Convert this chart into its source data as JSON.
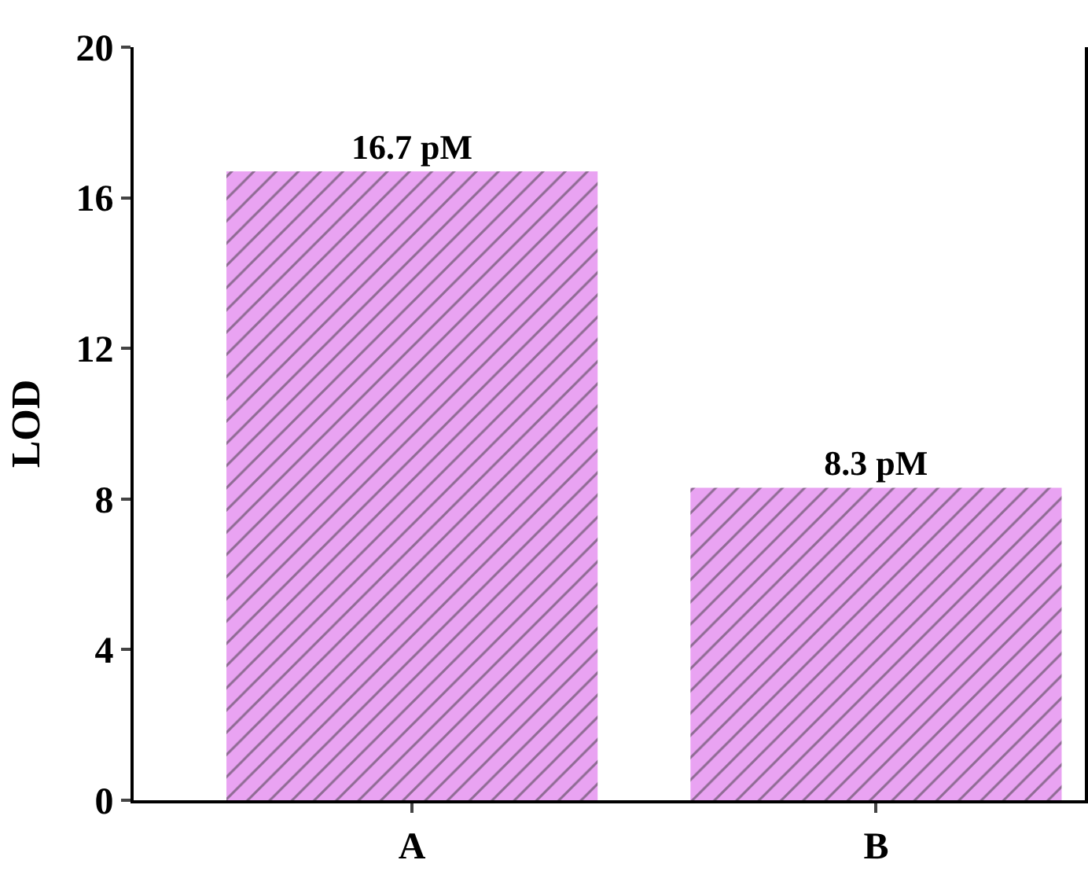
{
  "chart_data": {
    "type": "bar",
    "ylabel": "LOD",
    "categories": [
      "A",
      "B"
    ],
    "values": [
      16.7,
      8.3
    ],
    "value_labels": [
      "16.7 pM",
      "8.3 pM"
    ],
    "color": "#e9a3f2",
    "ylim": [
      0,
      20
    ],
    "yticks": [
      0,
      4,
      8,
      12,
      16,
      20
    ]
  }
}
